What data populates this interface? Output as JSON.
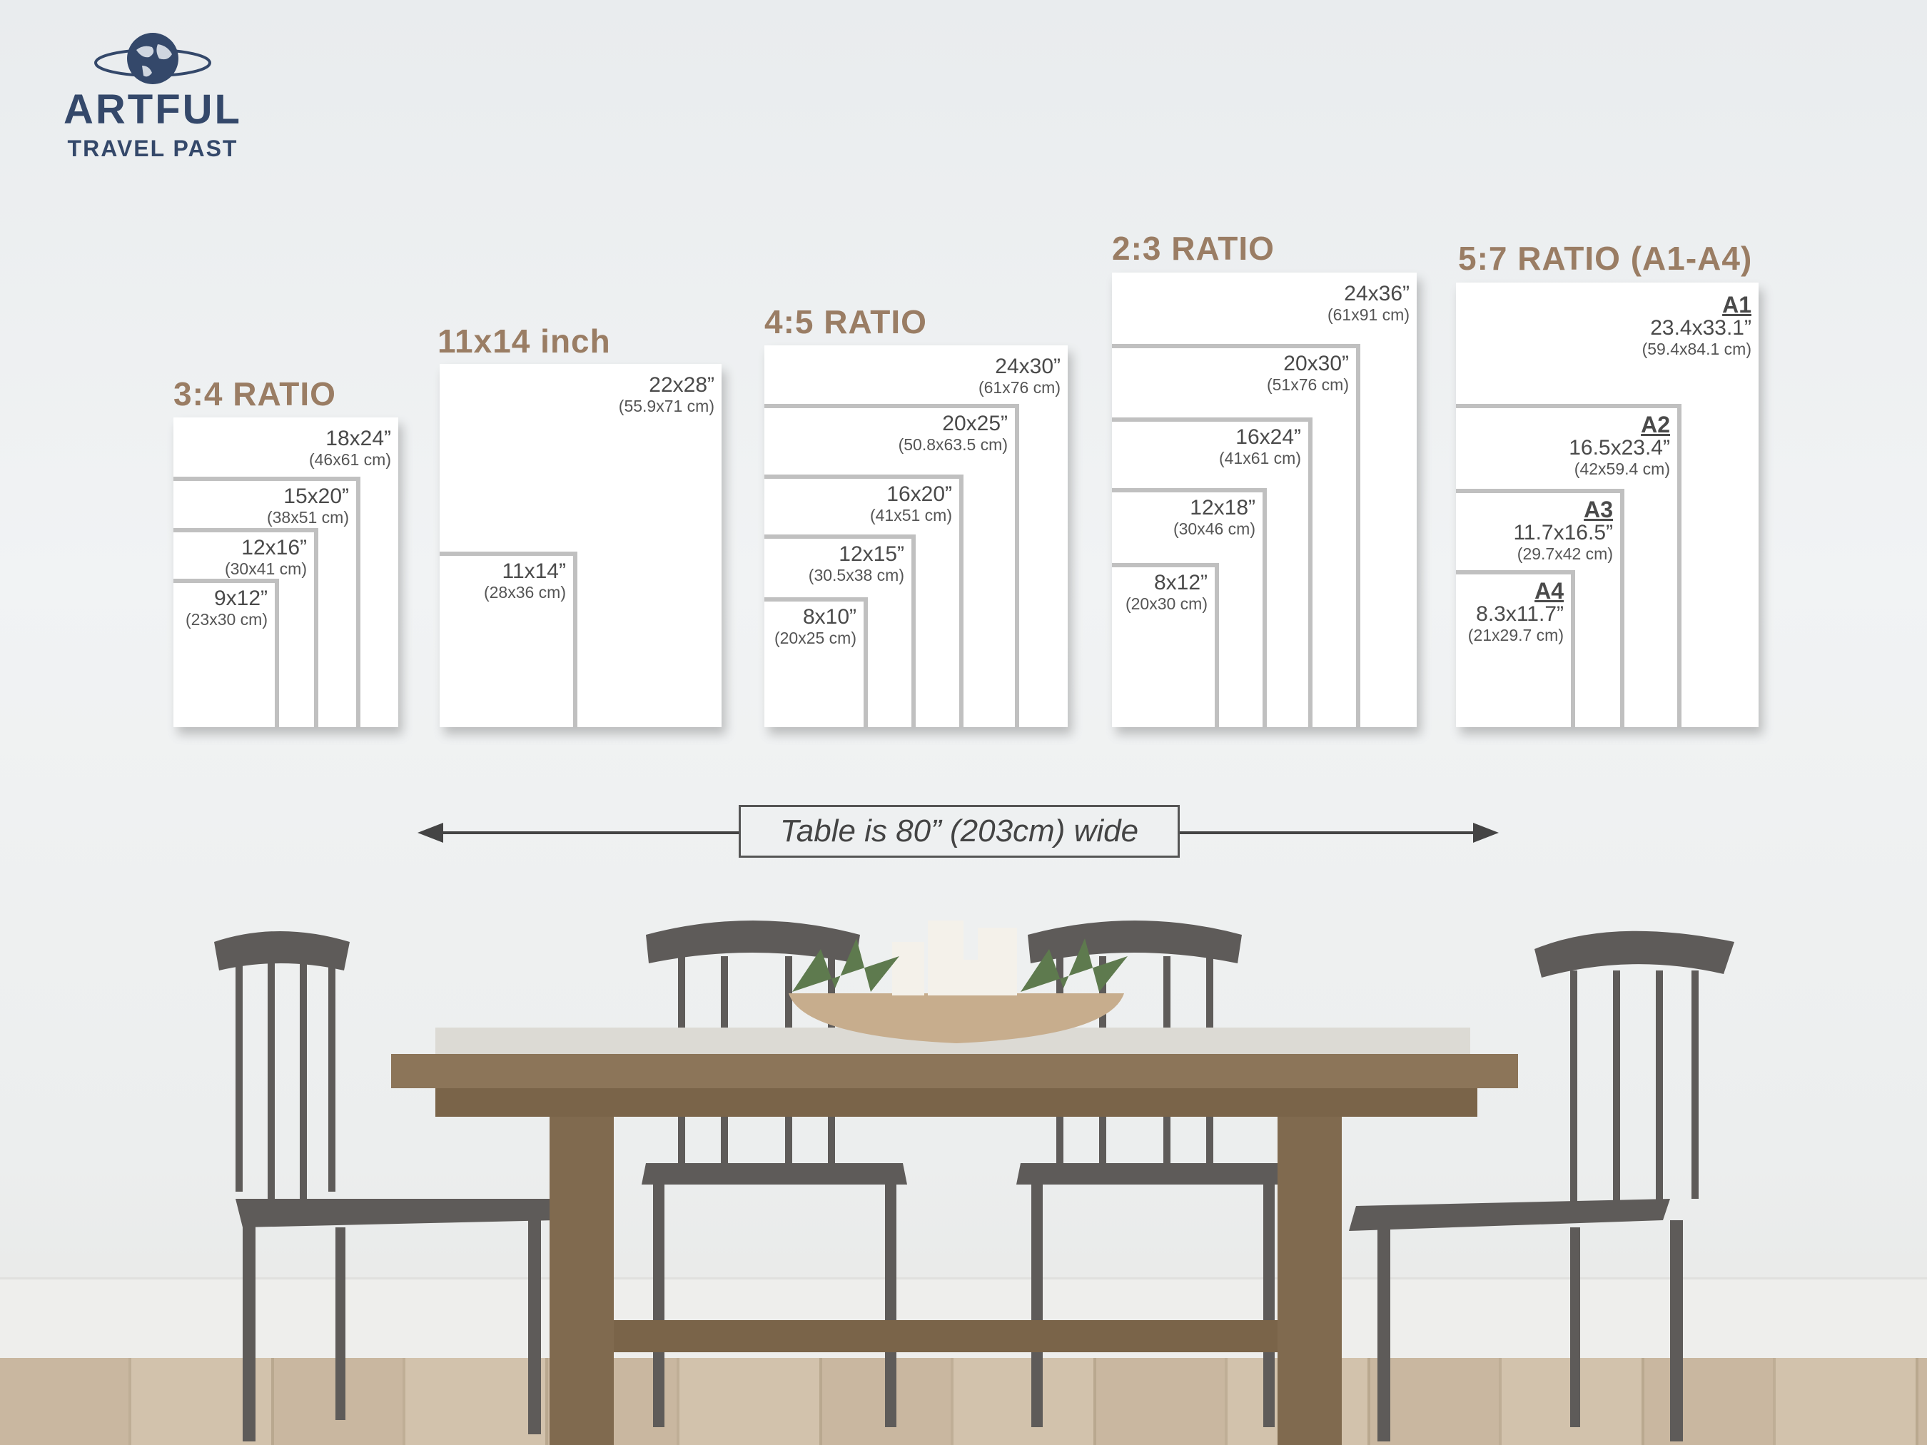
{
  "logo": {
    "line1": "ARTFUL",
    "line2": "TRAVEL PAST",
    "icon": "globe-icon",
    "color": "#34486a"
  },
  "heading_color": "#9a7d64",
  "groups": [
    {
      "heading": "3:4 RATIO",
      "frames": [
        {
          "size": "18x24”",
          "cm": "(46x61 cm)"
        },
        {
          "size": "15x20”",
          "cm": "(38x51 cm)"
        },
        {
          "size": "12x16”",
          "cm": "(30x41 cm)"
        },
        {
          "size": "9x12”",
          "cm": "(23x30 cm)"
        }
      ]
    },
    {
      "heading": "11x14 inch",
      "frames": [
        {
          "size": "22x28”",
          "cm": "(55.9x71 cm)"
        },
        {
          "size": "11x14”",
          "cm": "(28x36 cm)"
        }
      ]
    },
    {
      "heading": "4:5 RATIO",
      "frames": [
        {
          "size": "24x30”",
          "cm": "(61x76 cm)"
        },
        {
          "size": "20x25”",
          "cm": "(50.8x63.5 cm)"
        },
        {
          "size": "16x20”",
          "cm": "(41x51 cm)"
        },
        {
          "size": "12x15”",
          "cm": "(30.5x38 cm)"
        },
        {
          "size": "8x10”",
          "cm": "(20x25 cm)"
        }
      ]
    },
    {
      "heading": "2:3 RATIO",
      "frames": [
        {
          "size": "24x36”",
          "cm": "(61x91 cm)"
        },
        {
          "size": "20x30”",
          "cm": "(51x76 cm)"
        },
        {
          "size": "16x24”",
          "cm": "(41x61 cm)"
        },
        {
          "size": "12x18”",
          "cm": "(30x46 cm)"
        },
        {
          "size": "8x12”",
          "cm": "(20x30 cm)"
        }
      ]
    },
    {
      "heading": "5:7 RATIO (A1-A4)",
      "frames": [
        {
          "name": "A1",
          "size": "23.4x33.1”",
          "cm": "(59.4x84.1 cm)"
        },
        {
          "name": "A2",
          "size": "16.5x23.4”",
          "cm": "(42x59.4 cm)"
        },
        {
          "name": "A3",
          "size": "11.7x16.5”",
          "cm": "(29.7x42 cm)"
        },
        {
          "name": "A4",
          "size": "8.3x11.7”",
          "cm": "(21x29.7 cm)"
        }
      ]
    }
  ],
  "table_caption": "Table is 80” (203cm) wide"
}
